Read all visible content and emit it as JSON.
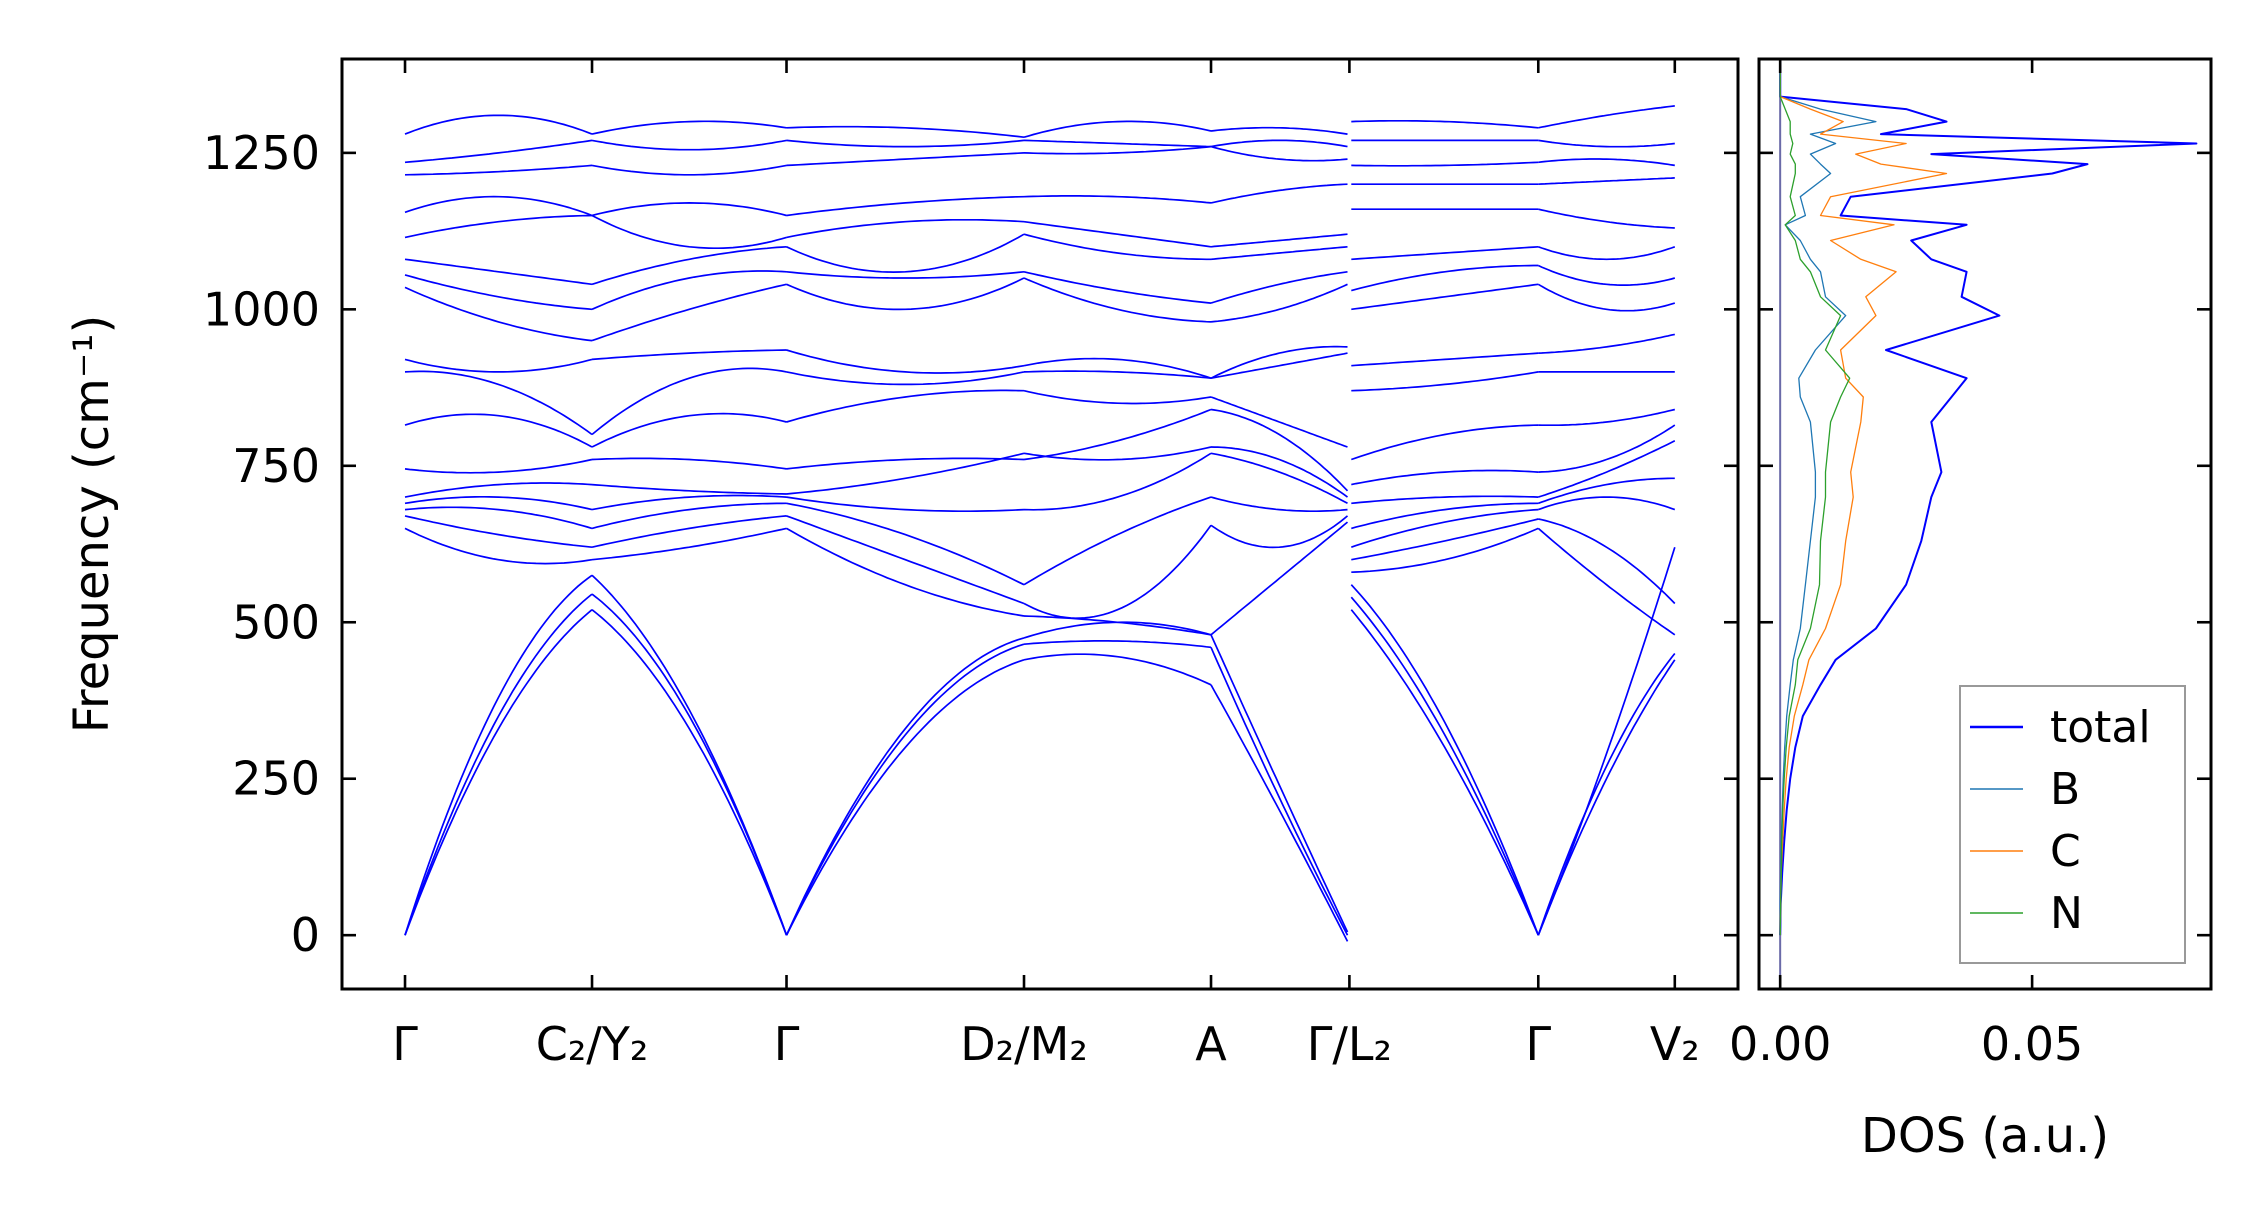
{
  "chart_data": [
    {
      "type": "line",
      "title": "",
      "ylabel": "Frequency (cm⁻¹)",
      "xlabel": "",
      "ylim": [
        -86,
        1400
      ],
      "xlim": [
        -0.337,
        7.128
      ],
      "yticks": [
        0,
        250,
        500,
        750,
        1000,
        1250
      ],
      "ytick_labels": [
        "0",
        "250",
        "500",
        "750",
        "1000",
        "1250"
      ],
      "kpoints": [
        {
          "x": 0,
          "label": "Γ"
        },
        {
          "x": 1.0,
          "top": "C₂",
          "bottom": "Y₂"
        },
        {
          "x": 2.04,
          "label": "Γ"
        },
        {
          "x": 3.31,
          "top": "D₂",
          "bottom": "M₂"
        },
        {
          "x": 4.31,
          "label": "A"
        },
        {
          "x": 5.05,
          "top": "Γ",
          "bottom": "L₂"
        },
        {
          "x": 6.06,
          "label": "Γ"
        },
        {
          "x": 6.79,
          "label": "V₂"
        }
      ],
      "segments": [
        [
          0,
          1.0
        ],
        [
          1.0,
          2.04
        ],
        [
          2.04,
          3.31
        ],
        [
          3.31,
          4.31
        ],
        [
          4.31,
          5.04
        ],
        [
          5.06,
          6.06
        ],
        [
          6.06,
          6.79
        ]
      ],
      "band_color": "#0000ff",
      "bands": [
        [
          0,
          330,
          520,
          330,
          0,
          300,
          440,
          445,
          400,
          200,
          -10,
          520,
          300,
          0,
          250,
          440
        ],
        [
          0,
          350,
          545,
          350,
          0,
          320,
          465,
          470,
          460,
          220,
          0,
          540,
          320,
          0,
          270,
          450
        ],
        [
          0,
          380,
          575,
          360,
          0,
          330,
          475,
          500,
          480,
          240,
          5,
          560,
          340,
          0,
          290,
          620
        ],
        [
          650,
          600,
          600,
          620,
          650,
          560,
          510,
          500,
          480,
          570,
          660,
          580,
          600,
          650,
          560,
          480
        ],
        [
          670,
          640,
          620,
          650,
          670,
          600,
          530,
          520,
          655,
          620,
          670,
          600,
          630,
          665,
          620,
          530
        ],
        [
          680,
          680,
          650,
          680,
          690,
          640,
          560,
          640,
          700,
          680,
          680,
          620,
          660,
          680,
          700,
          680
        ],
        [
          690,
          700,
          680,
          700,
          700,
          680,
          680,
          700,
          770,
          740,
          690,
          650,
          680,
          690,
          720,
          730
        ],
        [
          700,
          720,
          720,
          710,
          705,
          730,
          770,
          760,
          780,
          760,
          700,
          690,
          700,
          700,
          740,
          790
        ],
        [
          745,
          740,
          760,
          760,
          745,
          760,
          760,
          790,
          840,
          800,
          710,
          720,
          740,
          740,
          760,
          815
        ],
        [
          815,
          830,
          780,
          830,
          820,
          860,
          870,
          850,
          860,
          820,
          780,
          760,
          800,
          815,
          820,
          840
        ],
        [
          900,
          880,
          800,
          890,
          900,
          880,
          900,
          900,
          890,
          910,
          930,
          870,
          880,
          900,
          900,
          900
        ],
        [
          920,
          900,
          920,
          930,
          935,
          900,
          910,
          920,
          890,
          930,
          940,
          910,
          920,
          930,
          940,
          960
        ],
        [
          1035,
          980,
          950,
          1000,
          1040,
          1000,
          1050,
          1000,
          980,
          1000,
          1040,
          1000,
          1020,
          1040,
          1000,
          1010
        ],
        [
          1055,
          1020,
          1000,
          1050,
          1060,
          1050,
          1060,
          1030,
          1010,
          1040,
          1060,
          1030,
          1060,
          1070,
          1040,
          1050
        ],
        [
          1080,
          1060,
          1040,
          1080,
          1100,
          1060,
          1120,
          1090,
          1080,
          1090,
          1100,
          1080,
          1090,
          1100,
          1080,
          1100
        ],
        [
          1115,
          1140,
          1150,
          1100,
          1115,
          1140,
          1140,
          1120,
          1100,
          1110,
          1120,
          1160,
          1160,
          1160,
          1140,
          1130
        ],
        [
          1155,
          1180,
          1150,
          1170,
          1150,
          1170,
          1180,
          1180,
          1170,
          1190,
          1200,
          1200,
          1200,
          1200,
          1205,
          1210
        ],
        [
          1215,
          1220,
          1230,
          1215,
          1230,
          1240,
          1250,
          1250,
          1260,
          1240,
          1240,
          1230,
          1230,
          1235,
          1240,
          1230
        ],
        [
          1235,
          1250,
          1270,
          1255,
          1270,
          1260,
          1270,
          1265,
          1260,
          1270,
          1260,
          1270,
          1270,
          1270,
          1260,
          1265
        ],
        [
          1280,
          1310,
          1280,
          1300,
          1290,
          1290,
          1275,
          1300,
          1285,
          1290,
          1280,
          1300,
          1300,
          1290,
          1310,
          1325
        ]
      ]
    },
    {
      "type": "line",
      "xlabel": "DOS (a.u.)",
      "xlim": [
        -0.0042,
        0.0855
      ],
      "ylim": [
        -86,
        1400
      ],
      "xticks": [
        0.0,
        0.05
      ],
      "xtick_labels": [
        "0.00",
        "0.05"
      ],
      "legend_position": "lower-right",
      "frequency": [
        0,
        50,
        100,
        150,
        200,
        250,
        300,
        350,
        400,
        440,
        490,
        560,
        630,
        700,
        740,
        820,
        860,
        890,
        935,
        990,
        1020,
        1060,
        1080,
        1110,
        1135,
        1150,
        1180,
        1217,
        1232,
        1248,
        1265,
        1280,
        1300,
        1320,
        1340,
        1400
      ],
      "series": [
        {
          "name": "total",
          "color": "#0000ff",
          "values": [
            0,
            0.0001,
            0.0004,
            0.0008,
            0.0013,
            0.002,
            0.003,
            0.0045,
            0.008,
            0.011,
            0.019,
            0.025,
            0.028,
            0.03,
            0.032,
            0.03,
            0.034,
            0.037,
            0.021,
            0.0435,
            0.036,
            0.037,
            0.03,
            0.026,
            0.037,
            0.012,
            0.014,
            0.054,
            0.061,
            0.03,
            0.0826,
            0.02,
            0.033,
            0.025,
            0,
            0
          ]
        },
        {
          "name": "B",
          "color": "#1f77b4",
          "values": [
            0,
            0,
            0.0001,
            0.0002,
            0.0004,
            0.0006,
            0.0009,
            0.0013,
            0.002,
            0.0026,
            0.004,
            0.005,
            0.006,
            0.007,
            0.007,
            0.006,
            0.004,
            0.0037,
            0.007,
            0.013,
            0.009,
            0.008,
            0.006,
            0.004,
            0.001,
            0.005,
            0.004,
            0.01,
            0.008,
            0.006,
            0.011,
            0.006,
            0.019,
            0.008,
            0,
            0
          ]
        },
        {
          "name": "C",
          "color": "#ff7f0e",
          "values": [
            0,
            0.0001,
            0.0002,
            0.0005,
            0.0008,
            0.0012,
            0.0018,
            0.0028,
            0.0045,
            0.0057,
            0.009,
            0.012,
            0.013,
            0.0145,
            0.014,
            0.016,
            0.0165,
            0.013,
            0.012,
            0.019,
            0.017,
            0.023,
            0.016,
            0.01,
            0.0226,
            0.008,
            0.01,
            0.033,
            0.02,
            0.015,
            0.025,
            0.008,
            0.0125,
            0.006,
            0,
            0
          ]
        },
        {
          "name": "N",
          "color": "#2ca02c",
          "values": [
            0,
            0.0001,
            0.0002,
            0.0003,
            0.0005,
            0.0008,
            0.0012,
            0.0018,
            0.003,
            0.0035,
            0.006,
            0.0078,
            0.008,
            0.009,
            0.009,
            0.01,
            0.012,
            0.0138,
            0.009,
            0.012,
            0.008,
            0.006,
            0.004,
            0.003,
            0.001,
            0.003,
            0.002,
            0.003,
            0.003,
            0.002,
            0.0025,
            0.002,
            0.002,
            0.001,
            0,
            0
          ]
        }
      ]
    }
  ]
}
